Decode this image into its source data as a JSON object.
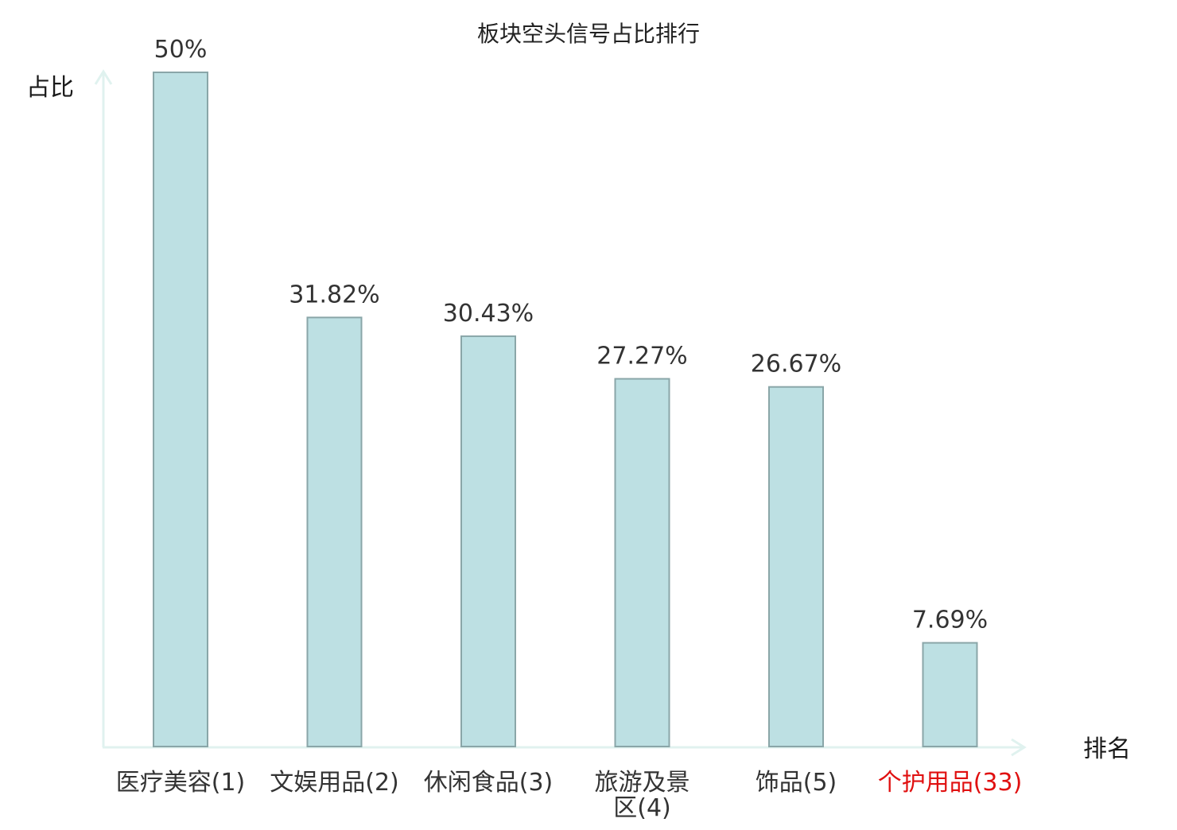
{
  "chart_data": {
    "type": "bar",
    "title": "板块空头信号占比排行",
    "ylabel": "占比",
    "xlabel": "排名",
    "categories": [
      [
        "医疗美容(1)"
      ],
      [
        "文娱用品(2)"
      ],
      [
        "休闲食品(3)"
      ],
      [
        "旅游及景",
        "区(4)"
      ],
      [
        "饰品(5)"
      ],
      [
        "个护用品(33)"
      ]
    ],
    "values": [
      50,
      31.82,
      30.43,
      27.27,
      26.67,
      7.69
    ],
    "value_labels": [
      "50%",
      "31.82%",
      "30.43%",
      "27.27%",
      "26.67%",
      "7.69%"
    ],
    "highlight_index": 5,
    "ylim": [
      0,
      50
    ],
    "grid": false,
    "colors": {
      "bar_fill": "#bde0e3",
      "bar_stroke": "#8aa6a8",
      "axis": "#e0f2ef",
      "text": "#333333",
      "highlight": "#e01010"
    }
  }
}
